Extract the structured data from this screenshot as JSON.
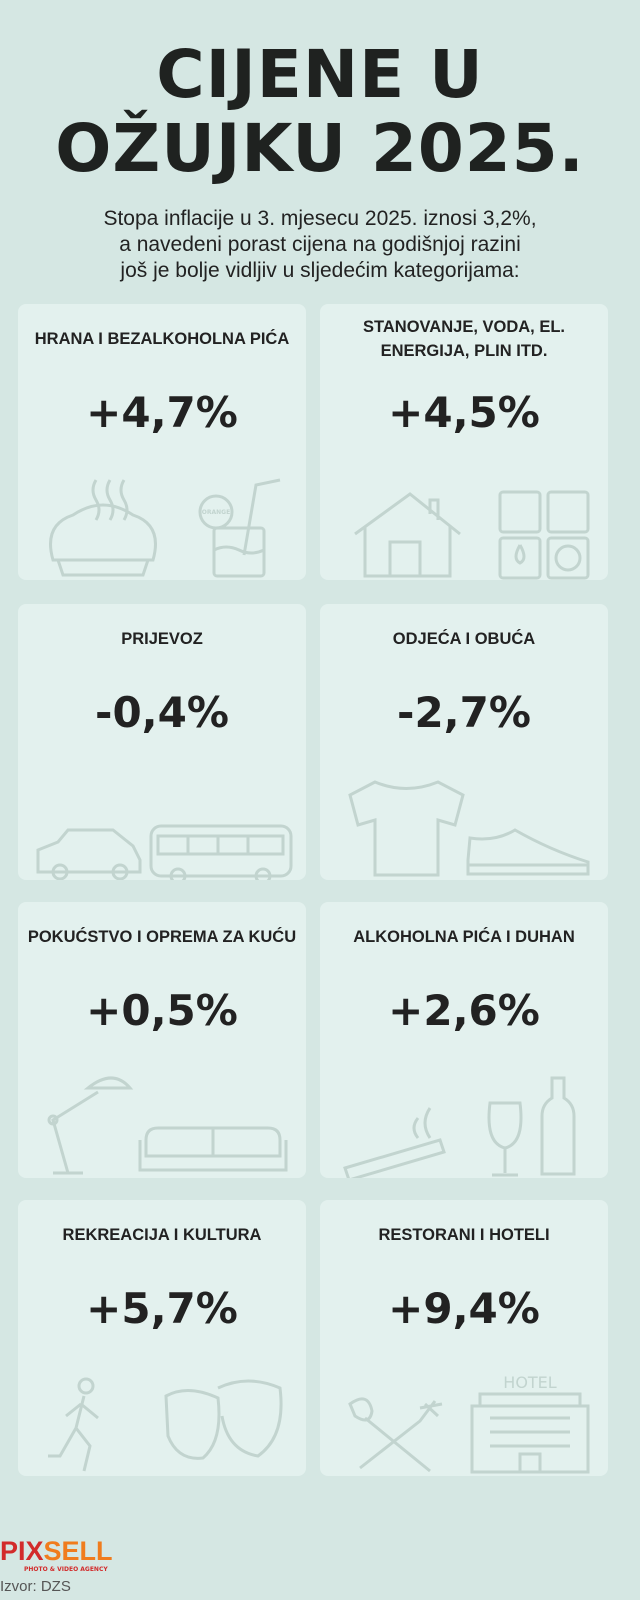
{
  "title_lines": [
    "CIJENE U",
    "OŽUJKU 2025."
  ],
  "intro_lines": [
    "Stopa inflacije u 3. mjesecu 2025. iznosi 3,2%,",
    "a navedeni porast cijena na godišnjoj razini",
    "još je bolje vidljiv u sljedećim kategorijama:"
  ],
  "categories": [
    {
      "title": "HRANA I BEZALKOHOLNA PIĆA",
      "value": "+4,7%",
      "icons": [
        "pie-icon",
        "lemonade-icon"
      ]
    },
    {
      "title": "STANOVANJE, VODA, EL. ENERGIJA, PLIN ITD.",
      "value": "+4,5%",
      "icons": [
        "house-icon",
        "utilities-icon"
      ]
    },
    {
      "title": "PRIJEVOZ",
      "value": "-0,4%",
      "icons": [
        "car-icon",
        "bus-icon"
      ]
    },
    {
      "title": "ODJEĆA I OBUĆA",
      "value": "-2,7%",
      "icons": [
        "tshirt-icon",
        "sneaker-icon"
      ]
    },
    {
      "title": "POKUĆSTVO I OPREMA ZA KUĆU",
      "value": "+0,5%",
      "icons": [
        "lamp-icon",
        "sofa-icon"
      ]
    },
    {
      "title": "ALKOHOLNA PIĆA I DUHAN",
      "value": "+2,6%",
      "icons": [
        "cigarette-icon",
        "wine-icon"
      ]
    },
    {
      "title": "REKREACIJA I KULTURA",
      "value": "+5,7%",
      "icons": [
        "runner-icon",
        "theater-masks-icon"
      ]
    },
    {
      "title": "RESTORANI I HOTELI",
      "value": "+9,4%",
      "icons": [
        "cutlery-icon",
        "hotel-icon"
      ]
    }
  ],
  "hotel_sign": "HOTEL",
  "lemonade_label": "ORANGE",
  "logo": {
    "part1": "PIX",
    "part2": "SELL",
    "tagline": "PHOTO & VIDEO AGENCY",
    "colors": [
      "#d22b2b",
      "#f07c1d"
    ]
  },
  "source": "Izvor: DZS",
  "colors": {
    "background": "#d5e7e3",
    "card": "#e3f1ee",
    "text": "#222222",
    "icon": "#c2d4cf"
  }
}
